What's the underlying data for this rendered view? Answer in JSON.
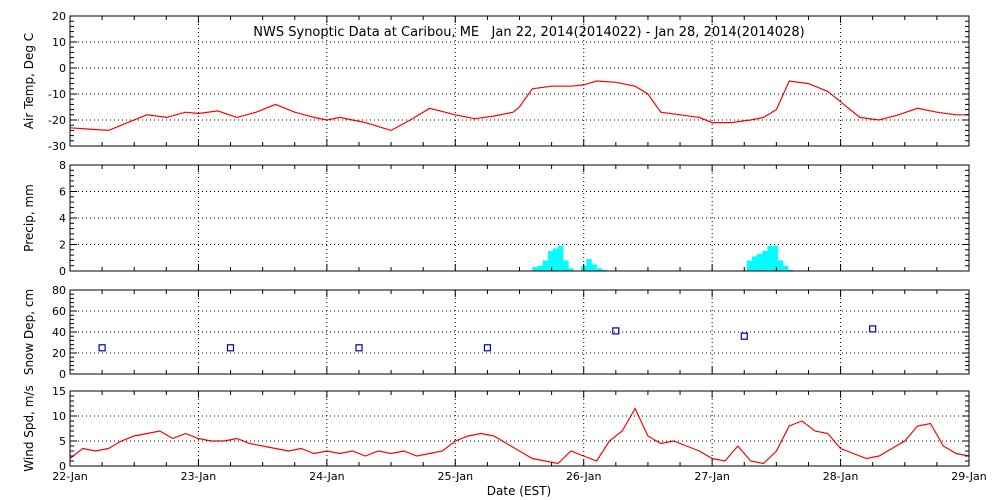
{
  "title": "NWS Synoptic Data at Caribou, ME   Jan 22, 2014(2014022) - Jan 28, 2014(2014028)",
  "xlabel": "Date (EST)",
  "x_ticks": [
    "22-Jan",
    "23-Jan",
    "24-Jan",
    "25-Jan",
    "26-Jan",
    "27-Jan",
    "28-Jan",
    "29-Jan"
  ],
  "colors": {
    "temp": "#ff0000",
    "precip": "#00ffff",
    "snow": "#0000aa",
    "wind": "#ff0000",
    "axes": "#000000"
  },
  "chart_data": [
    {
      "type": "line",
      "ylabel": "Air Temp, Deg C",
      "ylim": [
        -30,
        20
      ],
      "yticks": [
        -30,
        -20,
        -10,
        0,
        10,
        20
      ],
      "x_units": "days since 22-Jan 00:00 EST",
      "series": [
        {
          "x": [
            0,
            0.15,
            0.3,
            0.45,
            0.6,
            0.75,
            0.9,
            1.0,
            1.15,
            1.3,
            1.45,
            1.6,
            1.75,
            1.9,
            2.0,
            2.1,
            2.3,
            2.5,
            2.65,
            2.8,
            3.0,
            3.15,
            3.3,
            3.45,
            3.5,
            3.6,
            3.75,
            3.9,
            4.0,
            4.1,
            4.25,
            4.4,
            4.5,
            4.6,
            4.75,
            4.9,
            5.0,
            5.15,
            5.3,
            5.4,
            5.5,
            5.6,
            5.75,
            5.9,
            6.0,
            6.15,
            6.3,
            6.45,
            6.6,
            6.75,
            6.9,
            7.0
          ],
          "y": [
            -23,
            -23.5,
            -24,
            -21,
            -18,
            -19,
            -17,
            -17.5,
            -16.5,
            -19,
            -17,
            -14,
            -17,
            -19,
            -20,
            -19,
            -21,
            -24,
            -20,
            -15.5,
            -18,
            -19.5,
            -18.5,
            -17,
            -15,
            -8,
            -7,
            -7,
            -6.5,
            -5,
            -5.5,
            -7,
            -10,
            -17,
            -18,
            -19,
            -21,
            -21,
            -20,
            -19,
            -16,
            -5,
            -6,
            -9,
            -13,
            -19,
            -20,
            -18,
            -15.5,
            -17,
            -18,
            -18
          ]
        }
      ]
    },
    {
      "type": "bar",
      "ylabel": "Precip, mm",
      "ylim": [
        0,
        8
      ],
      "yticks": [
        0,
        2,
        4,
        6,
        8
      ],
      "x_units": "days since 22-Jan 00:00 EST",
      "bar_width_days": 0.0417,
      "series": [
        {
          "x": [
            3.6,
            3.64,
            3.68,
            3.72,
            3.76,
            3.8,
            3.84,
            3.88,
            3.98,
            4.02,
            4.06,
            4.1,
            4.14,
            5.27,
            5.31,
            5.35,
            5.39,
            5.43,
            5.47,
            5.51,
            5.55,
            5.59
          ],
          "y": [
            0.3,
            0.4,
            0.8,
            1.5,
            1.7,
            1.9,
            0.8,
            0.2,
            0.4,
            0.9,
            0.5,
            0.2,
            0.1,
            0.8,
            1.1,
            1.3,
            1.5,
            1.9,
            1.9,
            0.8,
            0.4,
            0.1
          ]
        }
      ]
    },
    {
      "type": "scatter",
      "ylabel": "Snow Dep, cm",
      "ylim": [
        0,
        80
      ],
      "yticks": [
        0,
        20,
        40,
        60,
        80
      ],
      "x_units": "days since 22-Jan 00:00 EST",
      "series": [
        {
          "x": [
            0.25,
            1.25,
            2.25,
            3.25,
            4.25,
            5.25,
            6.25
          ],
          "y": [
            25,
            25,
            25,
            25,
            41,
            36,
            43
          ]
        }
      ]
    },
    {
      "type": "line",
      "ylabel": "Wind Spd, m/s",
      "ylim": [
        0,
        15
      ],
      "yticks": [
        0,
        5,
        10,
        15
      ],
      "x_units": "days since 22-Jan 00:00 EST",
      "series": [
        {
          "x": [
            0,
            0.1,
            0.2,
            0.3,
            0.4,
            0.5,
            0.6,
            0.7,
            0.8,
            0.9,
            1.0,
            1.1,
            1.2,
            1.3,
            1.4,
            1.5,
            1.6,
            1.7,
            1.8,
            1.9,
            2.0,
            2.1,
            2.2,
            2.3,
            2.4,
            2.5,
            2.6,
            2.7,
            2.8,
            2.9,
            3.0,
            3.1,
            3.2,
            3.3,
            3.4,
            3.5,
            3.6,
            3.7,
            3.8,
            3.9,
            4.0,
            4.1,
            4.2,
            4.3,
            4.4,
            4.5,
            4.6,
            4.7,
            4.8,
            4.9,
            5.0,
            5.1,
            5.2,
            5.3,
            5.4,
            5.5,
            5.6,
            5.7,
            5.8,
            5.9,
            6.0,
            6.1,
            6.2,
            6.3,
            6.4,
            6.5,
            6.6,
            6.7,
            6.8,
            6.9,
            7.0
          ],
          "y": [
            1.5,
            3.5,
            3,
            3.5,
            5,
            6,
            6.5,
            7,
            5.5,
            6.5,
            5.5,
            5,
            5,
            5.5,
            4.5,
            4,
            3.5,
            3,
            3.5,
            2.5,
            3,
            2.5,
            3,
            2,
            3,
            2.5,
            3,
            2,
            2.5,
            3,
            5,
            6,
            6.5,
            6,
            4.5,
            3,
            1.5,
            1,
            0.5,
            3,
            2,
            1,
            5,
            7,
            11.5,
            6,
            4.5,
            5,
            4,
            3,
            1.5,
            1,
            4,
            1,
            0.5,
            3,
            8,
            9,
            7,
            6.5,
            3.5,
            2.5,
            1.5,
            2,
            3.5,
            5,
            8,
            8.5,
            4,
            2.5,
            2
          ]
        }
      ]
    }
  ]
}
